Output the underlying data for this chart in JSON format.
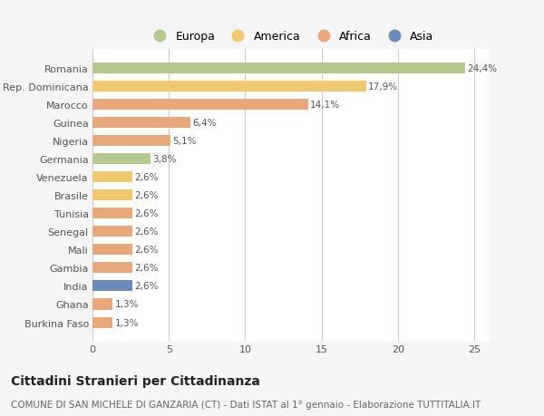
{
  "categories": [
    "Burkina Faso",
    "Ghana",
    "India",
    "Gambia",
    "Mali",
    "Senegal",
    "Tunisia",
    "Brasile",
    "Venezuela",
    "Germania",
    "Nigeria",
    "Guinea",
    "Marocco",
    "Rep. Dominicana",
    "Romania"
  ],
  "values": [
    1.3,
    1.3,
    2.6,
    2.6,
    2.6,
    2.6,
    2.6,
    2.6,
    2.6,
    3.8,
    5.1,
    6.4,
    14.1,
    17.9,
    24.4
  ],
  "labels": [
    "1,3%",
    "1,3%",
    "2,6%",
    "2,6%",
    "2,6%",
    "2,6%",
    "2,6%",
    "2,6%",
    "2,6%",
    "3,8%",
    "5,1%",
    "6,4%",
    "14,1%",
    "17,9%",
    "24,4%"
  ],
  "colors": [
    "#e8a87c",
    "#e8a87c",
    "#6b8cba",
    "#e8a87c",
    "#e8a87c",
    "#e8a87c",
    "#e8a87c",
    "#f0c96e",
    "#f0c96e",
    "#b5c98e",
    "#e8a87c",
    "#e8a87c",
    "#e8a87c",
    "#f0c96e",
    "#b5c98e"
  ],
  "legend_labels": [
    "Europa",
    "America",
    "Africa",
    "Asia"
  ],
  "legend_colors": [
    "#b5c98e",
    "#f0c96e",
    "#e8a87c",
    "#6b8cba"
  ],
  "title": "Cittadini Stranieri per Cittadinanza",
  "subtitle": "COMUNE DI SAN MICHELE DI GANZARIA (CT) - Dati ISTAT al 1° gennaio - Elaborazione TUTTITALIA.IT",
  "xlim": [
    0,
    26
  ],
  "xticks": [
    0,
    5,
    10,
    15,
    20,
    25
  ],
  "background_color": "#f5f5f5",
  "plot_bg_color": "#ffffff",
  "grid_color": "#cccccc",
  "bar_height": 0.6,
  "title_fontsize": 10,
  "subtitle_fontsize": 7.5,
  "label_fontsize": 7.5,
  "tick_fontsize": 8,
  "legend_fontsize": 9
}
